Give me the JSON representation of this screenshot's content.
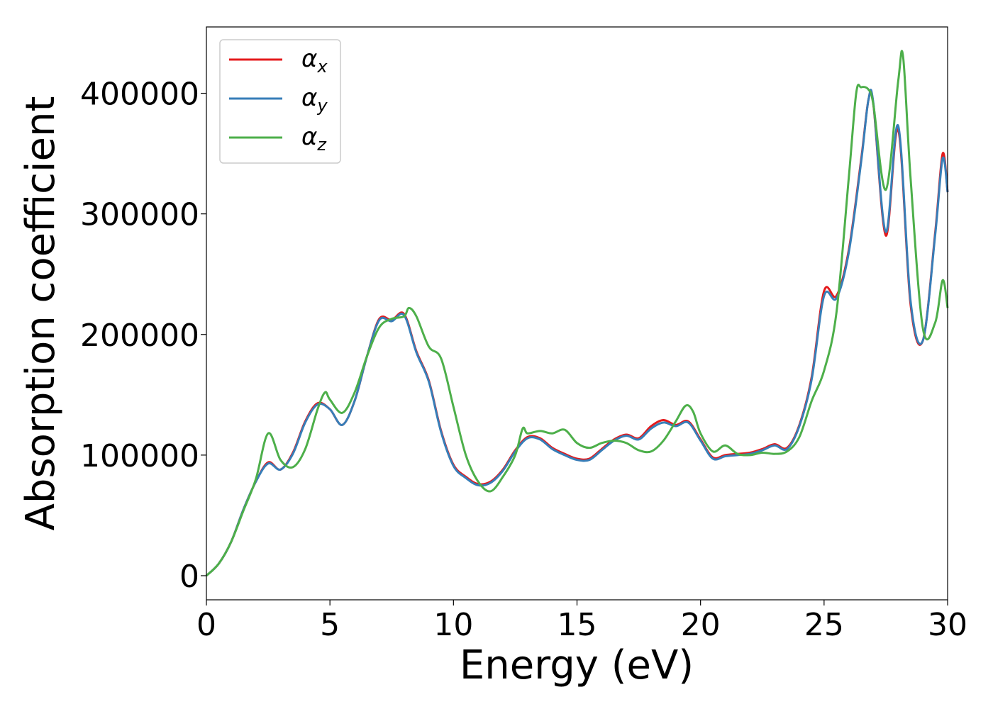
{
  "chart_data": {
    "type": "line",
    "title": "",
    "xlabel": "Energy (eV)",
    "ylabel": "Absorption coefficient",
    "xlim": [
      0,
      30
    ],
    "ylim": [
      -20000,
      455000
    ],
    "xticks": [
      0,
      5,
      10,
      15,
      20,
      25,
      30
    ],
    "yticks": [
      0,
      100000,
      200000,
      300000,
      400000
    ],
    "xtick_labels": [
      "0",
      "5",
      "10",
      "15",
      "20",
      "25",
      "30"
    ],
    "ytick_labels": [
      "0",
      "100000",
      "200000",
      "300000",
      "400000"
    ],
    "grid": false,
    "legend_position": "top-left",
    "series": [
      {
        "name": "αx",
        "color": "#e41a1c",
        "x": [
          0,
          0.5,
          1,
          1.5,
          2,
          2.5,
          3,
          3.5,
          4,
          4.5,
          5,
          5.5,
          6,
          6.5,
          7,
          7.5,
          8,
          8.5,
          9,
          9.5,
          10,
          10.5,
          11,
          11.5,
          12,
          12.5,
          13,
          13.5,
          14,
          14.5,
          15,
          15.5,
          16,
          16.5,
          17,
          17.5,
          18,
          18.5,
          19,
          19.5,
          20,
          20.5,
          21,
          21.5,
          22,
          22.5,
          23,
          23.5,
          24,
          24.5,
          25,
          25.5,
          26,
          26.5,
          26.8,
          27,
          27.5,
          28,
          28.5,
          29,
          29.5,
          29.8,
          30
        ],
        "y": [
          0,
          10000,
          28000,
          55000,
          78000,
          94000,
          88000,
          102000,
          128000,
          143000,
          138000,
          125000,
          145000,
          182000,
          213000,
          212000,
          217000,
          186000,
          162000,
          120000,
          92000,
          82000,
          76000,
          78000,
          88000,
          104000,
          115000,
          114000,
          106000,
          101000,
          97000,
          97000,
          105000,
          113000,
          117000,
          114000,
          124000,
          129000,
          125000,
          128000,
          113000,
          98000,
          100000,
          101000,
          102000,
          105000,
          109000,
          106000,
          125000,
          165000,
          236000,
          232000,
          270000,
          345000,
          395000,
          390000,
          282000,
          370000,
          225000,
          195000,
          285000,
          350000,
          318000
        ]
      },
      {
        "name": "αy",
        "color": "#377eb8",
        "x": [
          0,
          0.5,
          1,
          1.5,
          2,
          2.5,
          3,
          3.5,
          4,
          4.5,
          5,
          5.5,
          6,
          6.5,
          7,
          7.5,
          8,
          8.5,
          9,
          9.5,
          10,
          10.5,
          11,
          11.5,
          12,
          12.5,
          13,
          13.5,
          14,
          14.5,
          15,
          15.5,
          16,
          16.5,
          17,
          17.5,
          18,
          18.5,
          19,
          19.5,
          20,
          20.5,
          21,
          21.5,
          22,
          22.5,
          23,
          23.5,
          24,
          24.5,
          25,
          25.5,
          26,
          26.5,
          26.8,
          27,
          27.5,
          28,
          28.5,
          29,
          29.5,
          29.8,
          30
        ],
        "y": [
          0,
          10000,
          28000,
          55000,
          78000,
          93000,
          88000,
          101000,
          127000,
          142000,
          138000,
          125000,
          145000,
          182000,
          212000,
          211000,
          216000,
          185000,
          161000,
          119000,
          91000,
          81000,
          75000,
          77000,
          87000,
          103000,
          114000,
          113000,
          105000,
          100000,
          96000,
          96000,
          104000,
          112000,
          116000,
          113000,
          122000,
          127000,
          124000,
          127000,
          112000,
          97000,
          99000,
          100000,
          101000,
          104000,
          108000,
          105000,
          124000,
          163000,
          232000,
          230000,
          268000,
          343000,
          395000,
          391000,
          285000,
          373000,
          228000,
          195000,
          283000,
          346000,
          318000
        ]
      },
      {
        "name": "αz",
        "color": "#4daf4a",
        "x": [
          0,
          0.5,
          1,
          1.5,
          2,
          2.5,
          3,
          3.5,
          4,
          4.5,
          4.8,
          5,
          5.5,
          6,
          6.5,
          7,
          7.5,
          8,
          8.2,
          8.5,
          9,
          9.5,
          10,
          10.5,
          11,
          11.5,
          12,
          12.5,
          12.8,
          13,
          13.5,
          14,
          14.5,
          15,
          15.5,
          16,
          16.5,
          17,
          17.5,
          18,
          18.5,
          19,
          19.4,
          19.7,
          20,
          20.5,
          21,
          21.5,
          22,
          22.5,
          23,
          23.5,
          24,
          24.5,
          25,
          25.5,
          26,
          26.3,
          26.5,
          26.8,
          27,
          27.5,
          28,
          28.2,
          28.5,
          29,
          29.5,
          29.8,
          30
        ],
        "y": [
          0,
          10000,
          28000,
          54000,
          80000,
          118000,
          96000,
          90000,
          105000,
          138000,
          152000,
          146000,
          135000,
          152000,
          182000,
          206000,
          213000,
          215000,
          222000,
          215000,
          190000,
          180000,
          140000,
          100000,
          78000,
          70000,
          82000,
          100000,
          122000,
          118000,
          120000,
          118000,
          121000,
          110000,
          106000,
          110000,
          112000,
          110000,
          104000,
          103000,
          112000,
          128000,
          141000,
          136000,
          118000,
          103000,
          108000,
          101000,
          100000,
          102000,
          101000,
          103000,
          115000,
          145000,
          170000,
          218000,
          330000,
          400000,
          405000,
          403000,
          390000,
          320000,
          410000,
          430000,
          330000,
          205000,
          210000,
          245000,
          222000
        ]
      }
    ]
  }
}
